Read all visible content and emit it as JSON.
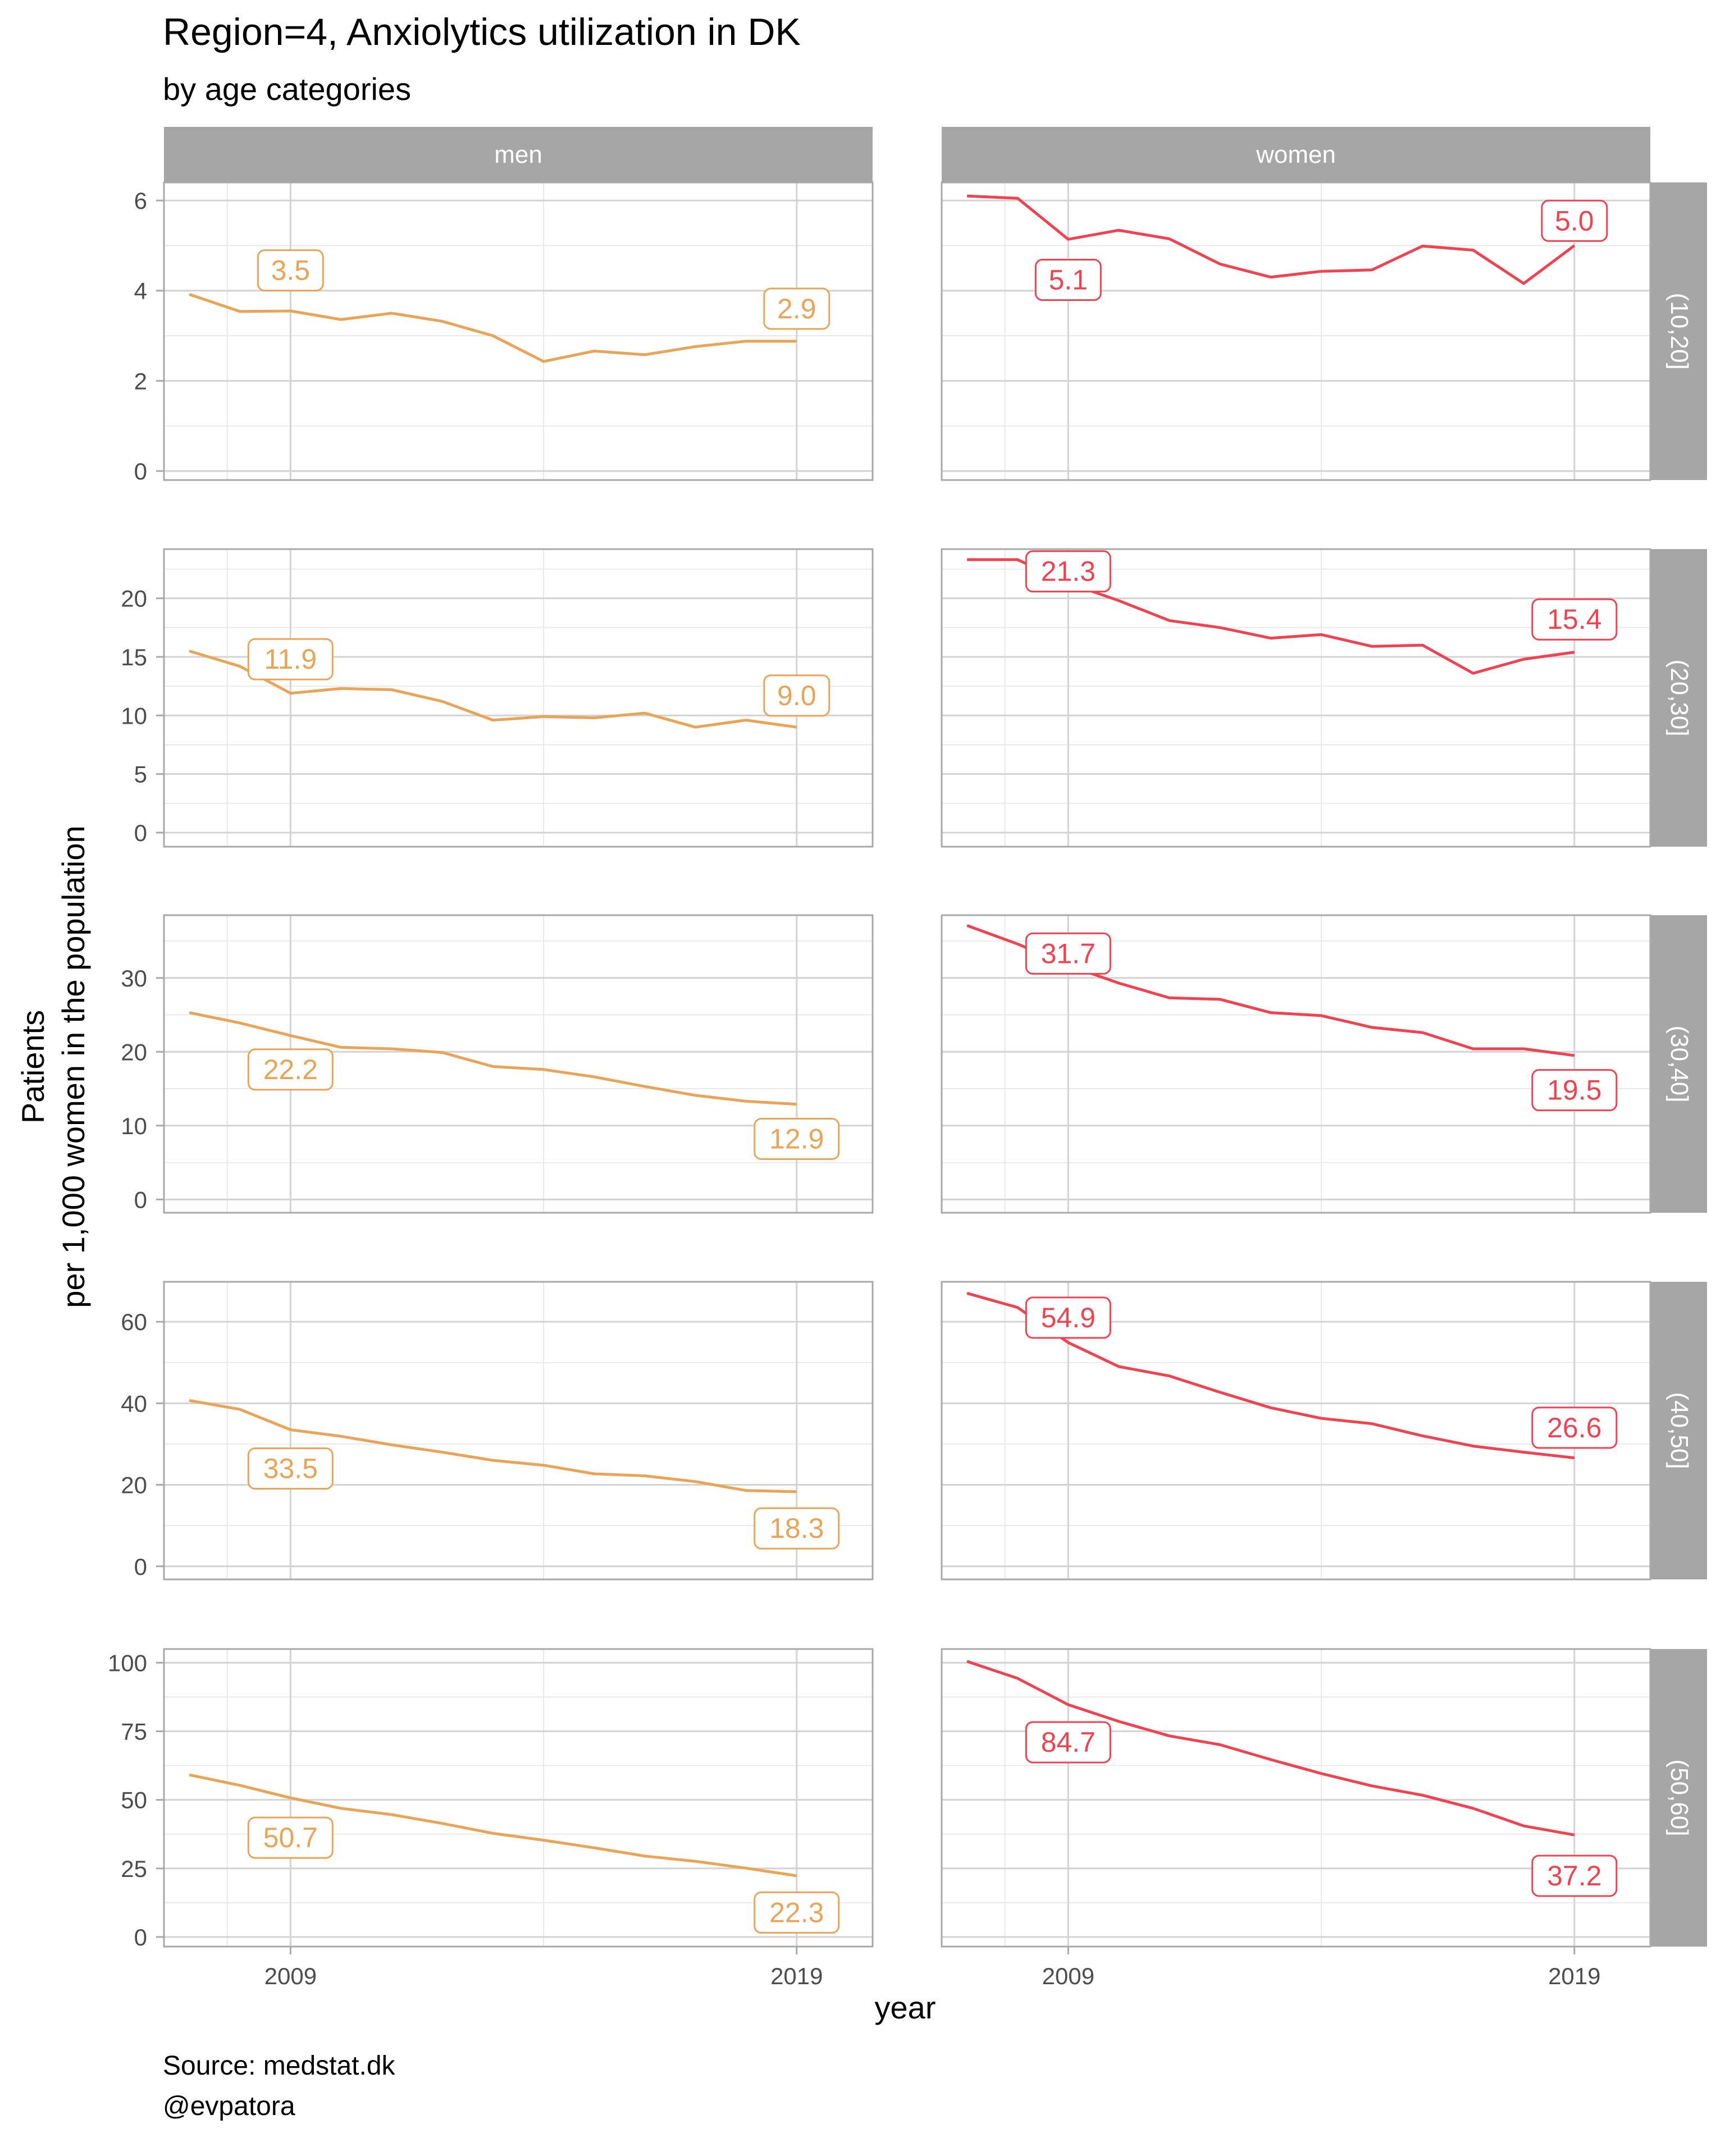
{
  "chart_data": {
    "type": "line",
    "title": "Region=4, Anxiolytics utilization in DK",
    "subtitle": "by age categories",
    "xlabel": "year",
    "ylabel": [
      "Patients",
      "per 1,000 women in the population"
    ],
    "caption": [
      "Source: medstat.dk",
      "@evpatora"
    ],
    "x_breaks": [
      2009,
      2019
    ],
    "x_range": [
      2006.5,
      2020.5
    ],
    "grid": true,
    "facet_cols": [
      "men",
      "women"
    ],
    "colors": {
      "men": "#E8A55A",
      "women": "#EE4452"
    },
    "panels": [
      {
        "age": "(10,20]",
        "ylim": [
          -0.2,
          6.4
        ],
        "y_breaks": [
          0,
          2,
          4,
          6
        ],
        "men": {
          "x": [
            2007,
            2008,
            2009,
            2010,
            2011,
            2012,
            2013,
            2014,
            2015,
            2016,
            2017,
            2018,
            2019
          ],
          "values": [
            3.92,
            3.54,
            3.55,
            3.36,
            3.5,
            3.32,
            3.0,
            2.43,
            2.66,
            2.58,
            2.76,
            2.88,
            2.88
          ],
          "labels": [
            {
              "year": 2009,
              "text": "3.5",
              "dy": 0.9
            },
            {
              "year": 2019,
              "text": "2.9",
              "dy": 0.72
            }
          ]
        },
        "women": {
          "x": [
            2007,
            2008,
            2009,
            2010,
            2011,
            2012,
            2013,
            2014,
            2015,
            2016,
            2017,
            2018,
            2019
          ],
          "values": [
            6.1,
            6.05,
            5.14,
            5.34,
            5.15,
            4.59,
            4.3,
            4.43,
            4.46,
            4.99,
            4.9,
            4.16,
            5.0
          ],
          "labels": [
            {
              "year": 2009,
              "text": "5.1",
              "dy": -0.9
            },
            {
              "year": 2019,
              "text": "5.0",
              "dy": 0.55
            }
          ]
        }
      },
      {
        "age": "(20,30]",
        "ylim": [
          -1.2,
          24.2
        ],
        "y_breaks": [
          0,
          5,
          10,
          15,
          20
        ],
        "men": {
          "x": [
            2007,
            2008,
            2009,
            2010,
            2011,
            2012,
            2013,
            2014,
            2015,
            2016,
            2017,
            2018,
            2019
          ],
          "values": [
            15.5,
            14.2,
            11.9,
            12.3,
            12.2,
            11.2,
            9.6,
            9.9,
            9.8,
            10.2,
            9.0,
            9.6,
            9.0
          ],
          "labels": [
            {
              "year": 2009,
              "text": "11.9",
              "dy": 2.9
            },
            {
              "year": 2019,
              "text": "9.0",
              "dy": 2.7
            }
          ]
        },
        "women": {
          "x": [
            2007,
            2008,
            2009,
            2010,
            2011,
            2012,
            2013,
            2014,
            2015,
            2016,
            2017,
            2018,
            2019
          ],
          "values": [
            23.3,
            23.3,
            21.3,
            19.8,
            18.1,
            17.5,
            16.6,
            16.9,
            15.9,
            16.0,
            13.6,
            14.8,
            15.4
          ],
          "labels": [
            {
              "year": 2009,
              "text": "21.3",
              "dy": 1.0
            },
            {
              "year": 2019,
              "text": "15.4",
              "dy": 2.8
            }
          ]
        }
      },
      {
        "age": "(30,40]",
        "ylim": [
          -1.8,
          38.5
        ],
        "y_breaks": [
          0,
          10,
          20,
          30
        ],
        "men": {
          "x": [
            2007,
            2008,
            2009,
            2010,
            2011,
            2012,
            2013,
            2014,
            2015,
            2016,
            2017,
            2018,
            2019
          ],
          "values": [
            25.3,
            23.9,
            22.2,
            20.6,
            20.4,
            19.9,
            18.0,
            17.6,
            16.6,
            15.3,
            14.1,
            13.3,
            12.9
          ],
          "labels": [
            {
              "year": 2009,
              "text": "22.2",
              "dy": -4.6
            },
            {
              "year": 2019,
              "text": "12.9",
              "dy": -4.7
            }
          ]
        },
        "women": {
          "x": [
            2007,
            2008,
            2009,
            2010,
            2011,
            2012,
            2013,
            2014,
            2015,
            2016,
            2017,
            2018,
            2019
          ],
          "values": [
            37.1,
            34.6,
            31.7,
            29.3,
            27.3,
            27.1,
            25.3,
            24.9,
            23.3,
            22.6,
            20.4,
            20.4,
            19.5
          ],
          "labels": [
            {
              "year": 2009,
              "text": "31.7",
              "dy": 1.6
            },
            {
              "year": 2019,
              "text": "19.5",
              "dy": -4.7
            }
          ]
        }
      },
      {
        "age": "(40,50]",
        "ylim": [
          -3.2,
          69.8
        ],
        "y_breaks": [
          0,
          20,
          40,
          60
        ],
        "men": {
          "x": [
            2007,
            2008,
            2009,
            2010,
            2011,
            2012,
            2013,
            2014,
            2015,
            2016,
            2017,
            2018,
            2019
          ],
          "values": [
            40.7,
            38.5,
            33.5,
            31.9,
            29.8,
            28.0,
            26.0,
            24.8,
            22.7,
            22.2,
            20.8,
            18.6,
            18.3
          ],
          "labels": [
            {
              "year": 2009,
              "text": "33.5",
              "dy": -9.5
            },
            {
              "year": 2019,
              "text": "18.3",
              "dy": -9.0
            }
          ]
        },
        "women": {
          "x": [
            2007,
            2008,
            2009,
            2010,
            2011,
            2012,
            2013,
            2014,
            2015,
            2016,
            2017,
            2018,
            2019
          ],
          "values": [
            67.0,
            63.5,
            54.9,
            49.0,
            46.7,
            42.7,
            38.9,
            36.3,
            35.0,
            32.0,
            29.5,
            28.0,
            26.6
          ],
          "labels": [
            {
              "year": 2009,
              "text": "54.9",
              "dy": 6.1
            },
            {
              "year": 2019,
              "text": "26.6",
              "dy": 7.4
            }
          ]
        }
      },
      {
        "age": "(50,60]",
        "ylim": [
          -3.5,
          105.0
        ],
        "y_breaks": [
          0,
          25,
          50,
          75,
          100
        ],
        "men": {
          "x": [
            2007,
            2008,
            2009,
            2010,
            2011,
            2012,
            2013,
            2014,
            2015,
            2016,
            2017,
            2018,
            2019
          ],
          "values": [
            59.1,
            55.3,
            50.7,
            46.9,
            44.6,
            41.4,
            37.8,
            35.3,
            32.5,
            29.5,
            27.6,
            25.1,
            22.3
          ],
          "labels": [
            {
              "year": 2009,
              "text": "50.7",
              "dy": -14.5
            },
            {
              "year": 2019,
              "text": "22.3",
              "dy": -13.4
            }
          ]
        },
        "women": {
          "x": [
            2007,
            2008,
            2009,
            2010,
            2011,
            2012,
            2013,
            2014,
            2015,
            2016,
            2017,
            2018,
            2019
          ],
          "values": [
            100.5,
            94.3,
            84.7,
            78.6,
            73.3,
            70.1,
            64.7,
            59.6,
            55.1,
            51.7,
            46.9,
            40.5,
            37.2
          ],
          "labels": [
            {
              "year": 2009,
              "text": "84.7",
              "dy": -13.7
            },
            {
              "year": 2019,
              "text": "37.2",
              "dy": -14.9
            }
          ]
        }
      }
    ]
  }
}
